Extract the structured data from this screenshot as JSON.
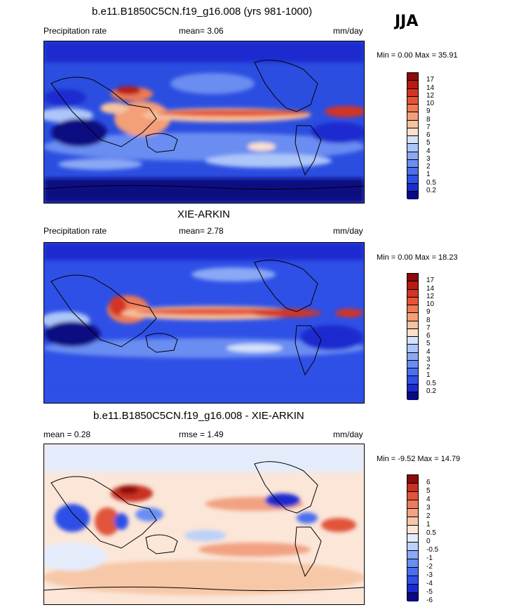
{
  "season": "JJA",
  "colors": {
    "prect": [
      "#0a0a82",
      "#1a2ccf",
      "#2f50e6",
      "#4a6ef0",
      "#6a8df2",
      "#8aa9f5",
      "#adc6f8",
      "#d4e2fb",
      "#fbe0cc",
      "#f7c2a0",
      "#f39f78",
      "#ee7a56",
      "#e55534",
      "#d43522",
      "#b81a14",
      "#8c0a0a"
    ],
    "diff": [
      "#0a0a82",
      "#1a2ccf",
      "#2f50e6",
      "#4a6ef0",
      "#6a8df2",
      "#8aa9f5",
      "#bcd1f9",
      "#e4ecfc",
      "#fbe6d8",
      "#f7c8a8",
      "#f2a282",
      "#ec7c5c",
      "#e0553a",
      "#c83020",
      "#8c0a0a"
    ]
  },
  "panels": [
    {
      "title": "b.e11.B1850C5CN.f19_g16.008 (yrs 981-1000)",
      "left_label": "Precipitation rate",
      "stat": "mean=   3.06",
      "units": "mm/day",
      "minmax": "Min =   0.00 Max =  35.91",
      "labels": [
        "17",
        "14",
        "12",
        "10",
        "9",
        "8",
        "7",
        "6",
        "5",
        "4",
        "3",
        "2",
        "1",
        "0.5",
        "0.2"
      ],
      "mean_value": 3.06,
      "min_value": 0.0,
      "max_value": 35.91
    },
    {
      "title": "XIE-ARKIN",
      "left_label": "Precipitation rate",
      "stat": "mean=   2.78",
      "units": "mm/day",
      "minmax": "Min =   0.00 Max =  18.23",
      "labels": [
        "17",
        "14",
        "12",
        "10",
        "9",
        "8",
        "7",
        "6",
        "5",
        "4",
        "3",
        "2",
        "1",
        "0.5",
        "0.2"
      ],
      "mean_value": 2.78,
      "min_value": 0.0,
      "max_value": 18.23
    },
    {
      "title": "b.e11.B1850C5CN.f19_g16.008 - XIE-ARKIN",
      "left_label": "mean =   0.28",
      "stat": "rmse =   1.49",
      "units": "mm/day",
      "minmax": "Min =  -9.52 Max =  14.79",
      "labels": [
        "6",
        "5",
        "4",
        "3",
        "2",
        "1",
        "0.5",
        "0",
        "-0.5",
        "-1",
        "-2",
        "-3",
        "-4",
        "-5",
        "-6"
      ],
      "mean_value": 0.28,
      "rmse_value": 1.49,
      "min_value": -9.52,
      "max_value": 14.79
    }
  ]
}
